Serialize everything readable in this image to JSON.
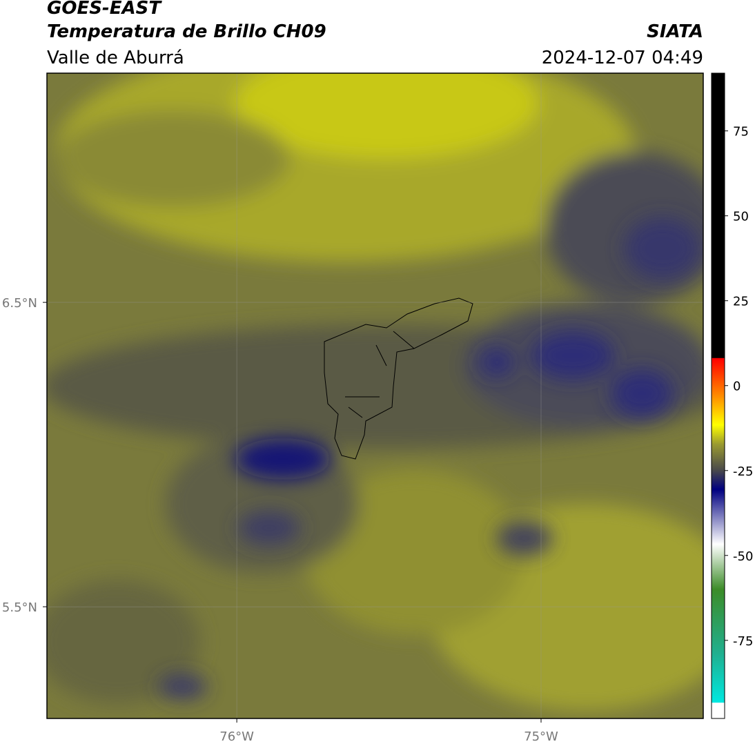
{
  "header": {
    "satellite": "GOES-EAST",
    "product": "Temperatura de Brillo CH09",
    "region": "Valle de Aburrá",
    "agency": "SIATA",
    "datetime": "2024-12-07 04:49"
  },
  "map": {
    "xlim": [
      -76.624,
      -74.467
    ],
    "ylim": [
      5.133,
      7.253
    ],
    "xticks": [
      {
        "value": -76,
        "label": "76°W"
      },
      {
        "value": -75,
        "label": "75°W"
      }
    ],
    "yticks": [
      {
        "value": 6.5,
        "label": "6.5°N"
      },
      {
        "value": 5.5,
        "label": "5.5°N"
      }
    ],
    "grid": true
  },
  "colorbar": {
    "lim": [
      -98,
      92
    ],
    "ticks": [
      75,
      50,
      25,
      0,
      -25,
      -50,
      -75
    ]
  }
}
